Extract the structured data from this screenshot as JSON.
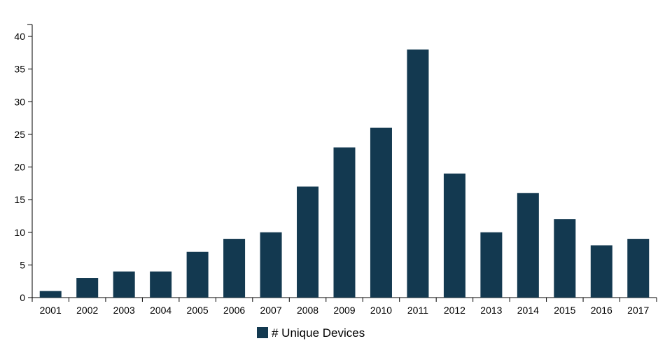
{
  "chart_data": {
    "type": "bar",
    "categories": [
      "2001",
      "2002",
      "2003",
      "2004",
      "2005",
      "2006",
      "2007",
      "2008",
      "2009",
      "2010",
      "2011",
      "2012",
      "2013",
      "2014",
      "2015",
      "2016",
      "2017"
    ],
    "series": [
      {
        "name": "# Unique Devices",
        "values": [
          1,
          3,
          4,
          4,
          7,
          9,
          10,
          17,
          23,
          26,
          38,
          19,
          10,
          16,
          12,
          8,
          9
        ]
      }
    ],
    "ylim": [
      0,
      40
    ],
    "y_ticks": [
      0,
      5,
      10,
      15,
      20,
      25,
      30,
      35,
      40
    ],
    "title": "",
    "xlabel": "",
    "ylabel": "",
    "grid": false,
    "legend_position": "bottom-center",
    "colors": {
      "bar": "#133950",
      "axis": "#000000"
    }
  }
}
